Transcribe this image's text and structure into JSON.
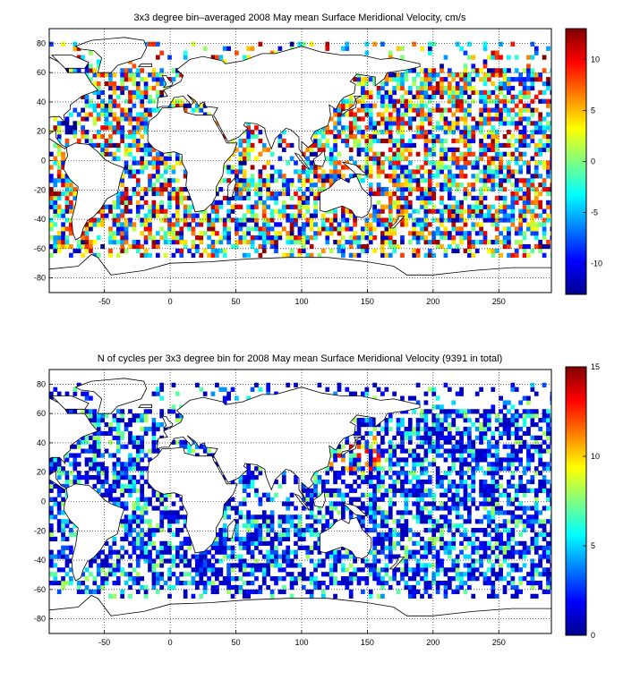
{
  "figure": {
    "panels": [
      {
        "title": "3x3 degree bin–averaged 2008 May mean Surface Meridional Velocity, cm/s",
        "colorbar_ticks": [
          "10",
          "5",
          "0",
          "-5",
          "-10"
        ]
      },
      {
        "title": "N of cycles per 3x3 degree bin for 2008 May mean Surface Meridional Velocity (9391 in total)",
        "colorbar_ticks": [
          "15",
          "10",
          "5",
          "0"
        ]
      }
    ]
  },
  "chart_data": [
    {
      "type": "heatmap",
      "title": "3x3 degree bin–averaged 2008 May mean Surface Meridional Velocity, cm/s",
      "xlabel": "",
      "ylabel": "",
      "xlim": [
        -92,
        290
      ],
      "ylim": [
        -90,
        90
      ],
      "xticks": [
        -50,
        0,
        50,
        100,
        150,
        200,
        250
      ],
      "yticks": [
        -80,
        -60,
        -40,
        -20,
        0,
        20,
        40,
        60,
        80
      ],
      "grid": true,
      "grid_style": "dotted",
      "bin_size_deg": 3,
      "colormap": "jet",
      "clim": [
        -13,
        13
      ],
      "colorbar_ticks": [
        10,
        5,
        0,
        -5,
        -10
      ],
      "colorbar_units": "cm/s",
      "description_of_values": "bin-averaged surface meridional velocity, mixed positive/negative, roughly within -13..13 cm/s across ocean bins"
    },
    {
      "type": "heatmap",
      "title": "N of cycles per 3x3 degree bin for 2008 May mean Surface Meridional Velocity (9391 in total)",
      "xlabel": "",
      "ylabel": "",
      "xlim": [
        -92,
        290
      ],
      "ylim": [
        -90,
        90
      ],
      "xticks": [
        -50,
        0,
        50,
        100,
        150,
        200,
        250
      ],
      "yticks": [
        -80,
        -60,
        -40,
        -20,
        0,
        20,
        40,
        60,
        80
      ],
      "grid": true,
      "grid_style": "dotted",
      "bin_size_deg": 3,
      "colormap": "jet",
      "clim": [
        0,
        15
      ],
      "colorbar_ticks": [
        15,
        10,
        5,
        0
      ],
      "total_cycles": 9391,
      "description_of_values": "counts mostly 1-4 per bin (dark blue to cyan), higher counts (10-15) in northwest Pacific near Japan"
    }
  ]
}
